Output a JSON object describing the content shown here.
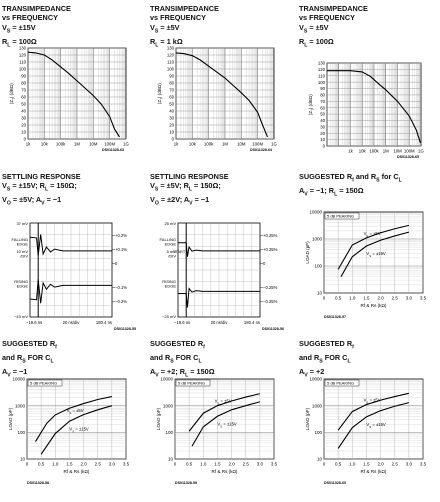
{
  "panels": [
    {
      "title_lines": [
        "TRANSIMPEDANCE",
        "vs FREQUENCY",
        "V<sub>S</sub> = ±15V",
        "R<sub>L</sub> = 100Ω"
      ],
      "doc_code": "DS011328-63"
    },
    {
      "title_lines": [
        "TRANSIMPEDANCE",
        "vs FREQUENCY",
        "V<sub>S</sub> = ±5V",
        "R<sub>L</sub> = 1 kΩ"
      ],
      "doc_code": "DS011328-64"
    },
    {
      "title_lines": [
        "TRANSIMPEDANCE",
        "vs FREQUENCY",
        "V<sub>S</sub> = ±5V",
        "R<sub>L</sub> = 100Ω"
      ],
      "doc_code": "DS011328-65"
    },
    {
      "title_lines": [
        "SETTLING RESPONSE",
        "V<sub>S</sub> = ±15V; R<sub>L</sub> = 150Ω;",
        "V<sub>O</sub> = ±5V; A<sub>V</sub> = −1"
      ],
      "doc_code": "DS011328-55"
    },
    {
      "title_lines": [
        "SETTLING RESPONSE",
        "V<sub>S</sub> = ±5V; R<sub>L</sub> = 150Ω;",
        "V<sub>O</sub> = ±2V; A<sub>V</sub> = −1"
      ],
      "doc_code": "DS011328-56"
    },
    {
      "title_lines": [
        "SUGGESTED R<sub>f</sub> and R<sub>S</sub> for C<sub>L</sub>",
        "A<sub>V</sub> = −1; R<sub>L</sub> = 150Ω"
      ],
      "doc_code": "DS011328-57"
    },
    {
      "title_lines": [
        "SUGGESTED R<sub>f</sub>",
        "and R<sub>S</sub> FOR C<sub>L</sub>",
        "A<sub>V</sub> = −1"
      ],
      "doc_code": "DS011328-58"
    },
    {
      "title_lines": [
        "SUGGESTED R<sub>f</sub>",
        "and R<sub>S</sub> FOR C<sub>L</sub>",
        "A<sub>V</sub> = +2; R<sub>L</sub> = 150Ω"
      ],
      "doc_code": "DS011328-59"
    },
    {
      "title_lines": [
        "SUGGESTED R<sub>f</sub>",
        "and R<sub>S</sub> FOR C<sub>L</sub>",
        "A<sub>V</sub> = +2"
      ],
      "doc_code": "DS011328-60"
    }
  ],
  "chart_data": [
    {
      "type": "line",
      "ylabel": "|Z<sub>T</sub>| (dBΩ)",
      "xlim": [
        1000,
        1000000000
      ],
      "xscale": "log",
      "xticks": [
        "1k",
        "10k",
        "100k",
        "1M",
        "10M",
        "100M",
        "1G"
      ],
      "ylim": [
        0,
        130
      ],
      "yticks": [
        "0",
        "10",
        "20",
        "30",
        "40",
        "50",
        "60",
        "70",
        "80",
        "90",
        "100",
        "110",
        "120",
        "130"
      ],
      "series": [
        {
          "x": [
            1000,
            3000,
            10000,
            30000,
            100000,
            300000,
            1000000,
            3000000,
            10000000,
            30000000,
            100000000,
            200000000,
            400000000
          ],
          "y": [
            124,
            123,
            120,
            113,
            103,
            94,
            83,
            73,
            62,
            50,
            32,
            14,
            3
          ]
        }
      ]
    },
    {
      "type": "line",
      "ylabel": "|Z<sub>T</sub>| (dBΩ)",
      "xlim": [
        1000,
        1000000000
      ],
      "xscale": "log",
      "xticks": [
        "1k",
        "10k",
        "100k",
        "1M",
        "10M",
        "100M",
        "1G"
      ],
      "ylim": [
        0,
        130
      ],
      "yticks": [
        "0",
        "10",
        "20",
        "30",
        "40",
        "50",
        "60",
        "70",
        "80",
        "90",
        "100",
        "110",
        "120",
        "130"
      ],
      "series": [
        {
          "x": [
            1000,
            3000,
            10000,
            30000,
            100000,
            300000,
            1000000,
            3000000,
            10000000,
            30000000,
            100000000,
            200000000,
            400000000
          ],
          "y": [
            123,
            122,
            119,
            113,
            104,
            96,
            87,
            77,
            66,
            55,
            38,
            20,
            3
          ]
        }
      ]
    },
    {
      "type": "line",
      "ylabel": "|Z<sub>T</sub>| (dBΩ)",
      "xlim": [
        10,
        1000000000
      ],
      "xscale": "log",
      "xticks": [
        "1k",
        "10k",
        "100k",
        "1M",
        "10M",
        "100M",
        "1G"
      ],
      "xtick_values": [
        1000,
        10000,
        100000,
        1000000,
        10000000,
        100000000,
        1000000000
      ],
      "ylim": [
        0,
        130
      ],
      "yticks": [
        "0",
        "10",
        "20",
        "30",
        "40",
        "50",
        "60",
        "70",
        "80",
        "90",
        "100",
        "110",
        "120",
        "130"
      ],
      "series": [
        {
          "x": [
            10,
            100,
            1000,
            10000,
            50000,
            300000,
            1000000,
            10000000,
            100000000,
            400000000,
            900000000
          ],
          "y": [
            118,
            118,
            118,
            116,
            109,
            96,
            88,
            70,
            47,
            25,
            5
          ]
        }
      ]
    },
    {
      "type": "line",
      "ylabels_left": [
        "37 mV",
        "FALLING EDGE",
        "10 mV /DIV",
        "RISING EDGE",
        "−43 mV"
      ],
      "ylabels_right": [
        "+0.2%",
        "+0.1%",
        "0",
        "−0.1%",
        "−0.2%"
      ],
      "xticks": [
        "−19.6 ns",
        "20 ns/div",
        "180.4 ns"
      ],
      "series": [
        {
          "name": "falling",
          "x": [
            0,
            0.8,
            1.0,
            1.3,
            1.6,
            2,
            2.5,
            3,
            4,
            6,
            10
          ],
          "y": [
            2.0,
            1.9,
            -0.6,
            2.4,
            -0.4,
            0.6,
            -0.1,
            0.3,
            0.05,
            0.05,
            0.05
          ]
        },
        {
          "name": "rising",
          "x": [
            0,
            0.8,
            1.0,
            1.3,
            1.6,
            2,
            2.5,
            3,
            4,
            6,
            10
          ],
          "y": [
            -2.0,
            -2.1,
            0.8,
            -2.6,
            0.3,
            -0.6,
            0.1,
            -0.3,
            -0.05,
            -0.05,
            -0.05
          ]
        }
      ]
    },
    {
      "type": "line",
      "ylabels_left": [
        "25 mV",
        "FALLING EDGE",
        "5 mV /DIV",
        "RISING EDGE",
        "−25 mV"
      ],
      "ylabels_right": [
        "+0.25%",
        "+0.25%",
        "0",
        "−0.25%",
        "−0.25%"
      ],
      "annotations": [
        "START"
      ],
      "xticks": [
        "−19.6 ns",
        "20 ns/div",
        "180.4 ns"
      ],
      "series": [
        {
          "name": "falling",
          "x": [
            0,
            1.0,
            1.15,
            1.35,
            1.7,
            2.2,
            3,
            4,
            6,
            10
          ],
          "y": [
            1.2,
            1.2,
            -0.8,
            0.6,
            0.0,
            0.15,
            0.05,
            0.05,
            0.05,
            0.05
          ]
        },
        {
          "name": "rising",
          "x": [
            0,
            1.0,
            1.15,
            1.35,
            1.7,
            2.2,
            3,
            4,
            6,
            10
          ],
          "y": [
            -1.2,
            -1.2,
            -3.2,
            -0.5,
            -1.0,
            -0.8,
            -0.9,
            -0.9,
            -0.9,
            -0.9
          ]
        }
      ]
    },
    {
      "type": "line",
      "xlabel": "Rf & Rs (kΩ)",
      "ylabel": "LOAD (pF)",
      "xlim": [
        0,
        3.5
      ],
      "xticks": [
        "0.5",
        "1.0",
        "1.5",
        "2.0",
        "2.5",
        "3.0",
        "3.5"
      ],
      "ylim": [
        10,
        10000
      ],
      "yscale": "log",
      "yticks": [
        "10",
        "100",
        "1000",
        "10000"
      ],
      "annotations": [
        "5 dB PEAKING",
        "V<sub>S</sub> = ±5V",
        "V<sub>S</sub> = ±15V"
      ],
      "series": [
        {
          "name": "V<sub>S</sub> = ±5V",
          "x": [
            0.5,
            1.0,
            1.5,
            2.0,
            2.5,
            3.0
          ],
          "y": [
            75,
            600,
            1100,
            1700,
            2400,
            3200
          ]
        },
        {
          "name": "V<sub>S</sub> = ±15V",
          "x": [
            0.6,
            1.0,
            1.5,
            2.0,
            2.5,
            3.0
          ],
          "y": [
            40,
            220,
            550,
            900,
            1300,
            1800
          ]
        }
      ]
    },
    {
      "type": "line",
      "xlabel": "Rf & Rs (kΩ)",
      "ylabel": "LOAD (pF)",
      "xlim": [
        0,
        3.5
      ],
      "xticks": [
        "0.5",
        "1.0",
        "1.5",
        "2.0",
        "2.5",
        "3.0",
        "3.5"
      ],
      "ylim": [
        10,
        10000
      ],
      "yscale": "log",
      "yticks": [
        "10",
        "100",
        "1000",
        "10000"
      ],
      "annotations": [
        "5 dB PEAKING",
        "V<sub>S</sub> = ±5V",
        "V<sub>S</sub> = ±15V"
      ],
      "series": [
        {
          "name": "V<sub>S</sub> = ±5V",
          "x": [
            0.3,
            0.7,
            1.0,
            1.5,
            2.0,
            2.5,
            3.0
          ],
          "y": [
            45,
            220,
            450,
            800,
            1200,
            1700,
            2200
          ]
        },
        {
          "name": "V<sub>S</sub> = ±15V",
          "x": [
            0.5,
            1.0,
            1.5,
            2.0,
            2.5,
            3.0
          ],
          "y": [
            15,
            90,
            260,
            460,
            700,
            1000
          ]
        }
      ]
    },
    {
      "type": "line",
      "xlabel": "Rf & Rs (kΩ)",
      "ylabel": "LOAD (pF)",
      "xlim": [
        0,
        3.5
      ],
      "xticks": [
        "0.5",
        "1.0",
        "1.5",
        "2.0",
        "2.5",
        "3.0",
        "3.5"
      ],
      "ylim": [
        10,
        10000
      ],
      "yscale": "log",
      "yticks": [
        "10",
        "100",
        "1000",
        "10000"
      ],
      "annotations": [
        "5 dB PEAKING",
        "V<sub>S</sub> = ±5V",
        "V<sub>S</sub> = ±15V"
      ],
      "series": [
        {
          "name": "V<sub>S</sub> = ±5V",
          "x": [
            0.5,
            1.0,
            1.5,
            2.0,
            2.5,
            3.0
          ],
          "y": [
            110,
            520,
            1000,
            1500,
            2100,
            2800
          ]
        },
        {
          "name": "V<sub>S</sub> = ±15V",
          "x": [
            0.6,
            1.0,
            1.5,
            2.0,
            2.5,
            3.0
          ],
          "y": [
            30,
            160,
            400,
            700,
            1000,
            1400
          ]
        }
      ]
    },
    {
      "type": "line",
      "xlabel": "Rf & Rs (kΩ)",
      "ylabel": "LOAD (pF)",
      "xlim": [
        0,
        3.5
      ],
      "xticks": [
        "0.5",
        "1.0",
        "1.5",
        "2.0",
        "2.5",
        "3.0",
        "3.5"
      ],
      "ylim": [
        10,
        10000
      ],
      "yscale": "log",
      "yticks": [
        "10",
        "100",
        "1000",
        "10000"
      ],
      "annotations": [
        "5 dB PEAKING",
        "V<sub>S</sub> = ±5V",
        "V<sub>S</sub> = ±15V"
      ],
      "series": [
        {
          "name": "V<sub>S</sub> = ±5V",
          "x": [
            0.5,
            1.0,
            1.5,
            2.0,
            2.5,
            3.0
          ],
          "y": [
            120,
            600,
            1100,
            1600,
            2200,
            2900
          ]
        },
        {
          "name": "V<sub>S</sub> = ±15V",
          "x": [
            0.5,
            1.0,
            1.5,
            2.0,
            2.5,
            3.0
          ],
          "y": [
            25,
            150,
            380,
            650,
            950,
            1300
          ]
        }
      ]
    }
  ]
}
